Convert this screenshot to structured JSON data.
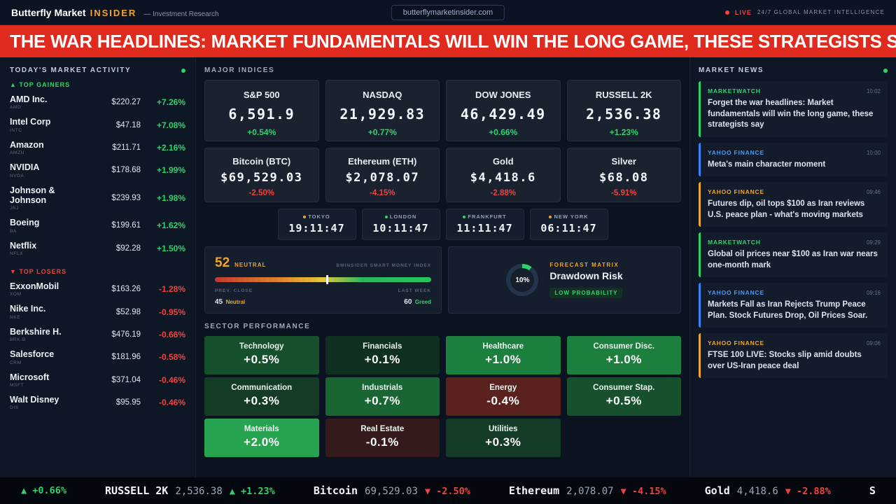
{
  "topbar": {
    "brand": "Butterfly Market",
    "brand_accent": "INSIDER",
    "brand_sub": "— Investment Research",
    "domain_button": "butterflymarketinsider.com",
    "live": "LIVE",
    "tagline": "24/7 GLOBAL MARKET INTELLIGENCE"
  },
  "banner": {
    "headline": "THE WAR HEADLINES: MARKET FUNDAMENTALS WILL WIN THE LONG GAME, THESE STRATEGISTS S"
  },
  "sidebar": {
    "title": "TODAY'S MARKET ACTIVITY",
    "gainers_label": "▲ TOP GAINERS",
    "losers_label": "▼ TOP LOSERS",
    "gainers": [
      {
        "name": "AMD Inc.",
        "ticker": "AMD",
        "price": "$220.27",
        "change": "+7.26%"
      },
      {
        "name": "Intel Corp",
        "ticker": "INTC",
        "price": "$47.18",
        "change": "+7.08%"
      },
      {
        "name": "Amazon",
        "ticker": "AMZN",
        "price": "$211.71",
        "change": "+2.16%"
      },
      {
        "name": "NVIDIA",
        "ticker": "NVDA",
        "price": "$178.68",
        "change": "+1.99%"
      },
      {
        "name": "Johnson & Johnson",
        "ticker": "JNJ",
        "price": "$239.93",
        "change": "+1.98%"
      },
      {
        "name": "Boeing",
        "ticker": "BA",
        "price": "$199.61",
        "change": "+1.62%"
      },
      {
        "name": "Netflix",
        "ticker": "NFLX",
        "price": "$92.28",
        "change": "+1.50%"
      }
    ],
    "losers": [
      {
        "name": "ExxonMobil",
        "ticker": "XOM",
        "price": "$163.26",
        "change": "-1.28%"
      },
      {
        "name": "Nike Inc.",
        "ticker": "NKE",
        "price": "$52.98",
        "change": "-0.95%"
      },
      {
        "name": "Berkshire H.",
        "ticker": "BRK-B",
        "price": "$476.19",
        "change": "-0.66%"
      },
      {
        "name": "Salesforce",
        "ticker": "CRM",
        "price": "$181.96",
        "change": "-0.58%"
      },
      {
        "name": "Microsoft",
        "ticker": "MSFT",
        "price": "$371.04",
        "change": "-0.46%"
      },
      {
        "name": "Walt Disney",
        "ticker": "DIS",
        "price": "$95.95",
        "change": "-0.46%"
      }
    ]
  },
  "indices": {
    "title": "MAJOR INDICES",
    "cards": [
      {
        "name": "S&P 500",
        "value": "6,591.9",
        "change": "+0.54%"
      },
      {
        "name": "NASDAQ",
        "value": "21,929.83",
        "change": "+0.77%"
      },
      {
        "name": "DOW JONES",
        "value": "46,429.49",
        "change": "+0.66%"
      },
      {
        "name": "RUSSELL 2K",
        "value": "2,536.38",
        "change": "+1.23%"
      }
    ],
    "commodities": [
      {
        "name": "Bitcoin (BTC)",
        "value": "$69,529.03",
        "change": "-2.50%"
      },
      {
        "name": "Ethereum (ETH)",
        "value": "$2,078.07",
        "change": "-4.15%"
      },
      {
        "name": "Gold",
        "value": "$4,418.6",
        "change": "-2.88%"
      },
      {
        "name": "Silver",
        "value": "$68.08",
        "change": "-5.91%"
      }
    ]
  },
  "clocks": [
    {
      "city": "TOKYO",
      "time": "19:11:47",
      "dot": "amber"
    },
    {
      "city": "LONDON",
      "time": "10:11:47",
      "dot": "green"
    },
    {
      "city": "FRANKFURT",
      "time": "11:11:47",
      "dot": "green"
    },
    {
      "city": "NEW YORK",
      "time": "06:11:47",
      "dot": "amber"
    }
  ],
  "sentiment": {
    "value": 52,
    "label": "NEUTRAL",
    "index_name": "BMINSIDER SMART MONEY INDEX",
    "prev_label": "PREV. CLOSE",
    "prev_value": "45",
    "prev_mood": "Neutral",
    "week_label": "LAST WEEK",
    "week_value": "60",
    "week_mood": "Greed"
  },
  "forecast": {
    "gauge_pct": 10,
    "gauge_label": "10%",
    "kicker": "FORECAST MATRIX",
    "title": "Drawdown Risk",
    "badge": "LOW PROBABILITY"
  },
  "sectors": {
    "title": "SECTOR PERFORMANCE",
    "tiles": [
      {
        "name": "Technology",
        "change": "+0.5%",
        "tone": "g3"
      },
      {
        "name": "Financials",
        "change": "+0.1%",
        "tone": "g1"
      },
      {
        "name": "Healthcare",
        "change": "+1.0%",
        "tone": "g5"
      },
      {
        "name": "Consumer Disc.",
        "change": "+1.0%",
        "tone": "g5"
      },
      {
        "name": "Communication",
        "change": "+0.3%",
        "tone": "g2"
      },
      {
        "name": "Industrials",
        "change": "+0.7%",
        "tone": "g4"
      },
      {
        "name": "Energy",
        "change": "-0.4%",
        "tone": "r2"
      },
      {
        "name": "Consumer Stap.",
        "change": "+0.5%",
        "tone": "g3"
      },
      {
        "name": "Materials",
        "change": "+2.0%",
        "tone": "g6"
      },
      {
        "name": "Real Estate",
        "change": "-0.1%",
        "tone": "r1"
      },
      {
        "name": "Utilities",
        "change": "+0.3%",
        "tone": "g2"
      }
    ]
  },
  "news": {
    "title": "MARKET NEWS",
    "items": [
      {
        "source": "MARKETWATCH",
        "time": "10:02",
        "headline": "Forget the war headlines: Market fundamentals will win the long game, these strategists say",
        "accent": "green"
      },
      {
        "source": "YAHOO FINANCE",
        "time": "10:00",
        "headline": "Meta's main character moment",
        "accent": "blue"
      },
      {
        "source": "YAHOO FINANCE",
        "time": "09:46",
        "headline": "Futures dip, oil tops $100 as Iran reviews U.S. peace plan - what's moving markets",
        "accent": "orange"
      },
      {
        "source": "MARKETWATCH",
        "time": "09:29",
        "headline": "Global oil prices near $100 as Iran war nears one-month mark",
        "accent": "green"
      },
      {
        "source": "YAHOO FINANCE",
        "time": "09:16",
        "headline": "Markets Fall as Iran Rejects Trump Peace Plan. Stock Futures Drop, Oil Prices Soar.",
        "accent": "blue"
      },
      {
        "source": "YAHOO FINANCE",
        "time": "09:06",
        "headline": "FTSE 100 LIVE: Stocks slip amid doubts over US-Iran peace deal",
        "accent": "orange"
      }
    ]
  },
  "ticker": {
    "items": [
      {
        "name": "",
        "value": "",
        "change": "▲ +0.66%",
        "dir": "up"
      },
      {
        "name": "RUSSELL 2K",
        "value": "2,536.38",
        "change": "▲ +1.23%",
        "dir": "up"
      },
      {
        "name": "Bitcoin",
        "value": "69,529.03",
        "change": "▼ -2.50%",
        "dir": "down"
      },
      {
        "name": "Ethereum",
        "value": "2,078.07",
        "change": "▼ -4.15%",
        "dir": "down"
      },
      {
        "name": "Gold",
        "value": "4,418.6",
        "change": "▼ -2.88%",
        "dir": "down"
      },
      {
        "name": "S",
        "value": "",
        "change": "",
        "dir": "up"
      }
    ]
  },
  "colors": {
    "positive": "#2fd36a",
    "negative": "#f0433c",
    "accent_amber": "#f0a62c",
    "accent_blue": "#4e9af5",
    "banner_red": "#e02a1e",
    "brand_orange": "#f2a32b"
  }
}
